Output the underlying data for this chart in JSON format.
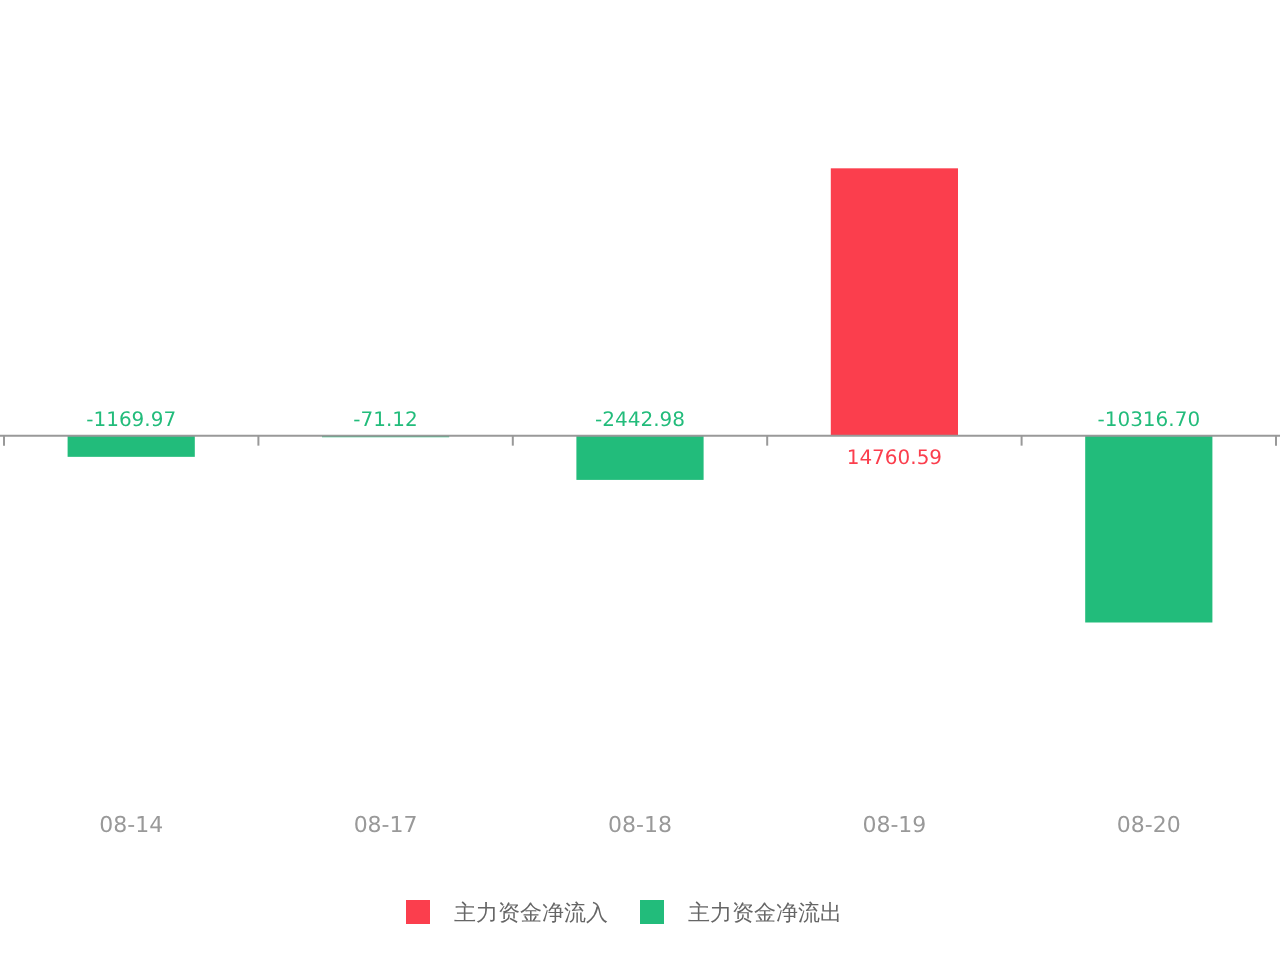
{
  "chart_data": {
    "type": "bar",
    "categories": [
      "08-14",
      "08-17",
      "08-18",
      "08-19",
      "08-20"
    ],
    "series": [
      {
        "name": "主力资金净流入",
        "color": "#fb3e4d",
        "values": [
          null,
          null,
          null,
          14760.59,
          null
        ],
        "value_labels": [
          null,
          null,
          null,
          "14760.59",
          null
        ]
      },
      {
        "name": "主力资金净流出",
        "color": "#22bc7b",
        "values": [
          -1169.97,
          -71.12,
          -2442.98,
          null,
          -10316.7
        ],
        "value_labels": [
          "-1169.97",
          "-71.12",
          "-2442.98",
          null,
          "-10316.70"
        ]
      }
    ],
    "tick_labels": "x",
    "legend": "bottom"
  }
}
